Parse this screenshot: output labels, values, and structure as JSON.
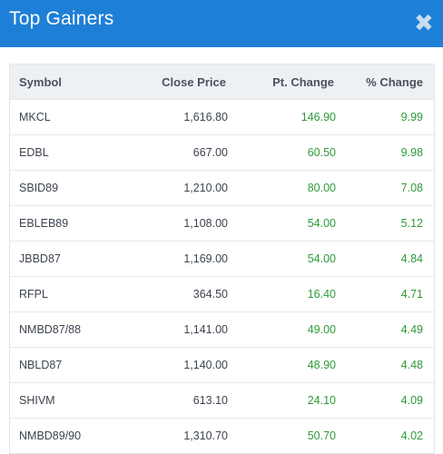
{
  "header": {
    "title": "Top Gainers",
    "close_icon": "close-icon"
  },
  "table": {
    "columns": [
      "Symbol",
      "Close Price",
      "Pt. Change",
      "% Change"
    ],
    "rows": [
      {
        "symbol": "MKCL",
        "close": "1,616.80",
        "pt": "146.90",
        "pct": "9.99"
      },
      {
        "symbol": "EDBL",
        "close": "667.00",
        "pt": "60.50",
        "pct": "9.98"
      },
      {
        "symbol": "SBID89",
        "close": "1,210.00",
        "pt": "80.00",
        "pct": "7.08"
      },
      {
        "symbol": "EBLEB89",
        "close": "1,108.00",
        "pt": "54.00",
        "pct": "5.12"
      },
      {
        "symbol": "JBBD87",
        "close": "1,169.00",
        "pt": "54.00",
        "pct": "4.84"
      },
      {
        "symbol": "RFPL",
        "close": "364.50",
        "pt": "16.40",
        "pct": "4.71"
      },
      {
        "symbol": "NMBD87/88",
        "close": "1,141.00",
        "pt": "49.00",
        "pct": "4.49"
      },
      {
        "symbol": "NBLD87",
        "close": "1,140.00",
        "pt": "48.90",
        "pct": "4.48"
      },
      {
        "symbol": "SHIVM",
        "close": "613.10",
        "pt": "24.10",
        "pct": "4.09"
      },
      {
        "symbol": "NMBD89/90",
        "close": "1,310.70",
        "pt": "50.70",
        "pct": "4.02"
      }
    ]
  },
  "colors": {
    "header_bg": "#1e7fd6",
    "positive": "#2e9a3a"
  }
}
